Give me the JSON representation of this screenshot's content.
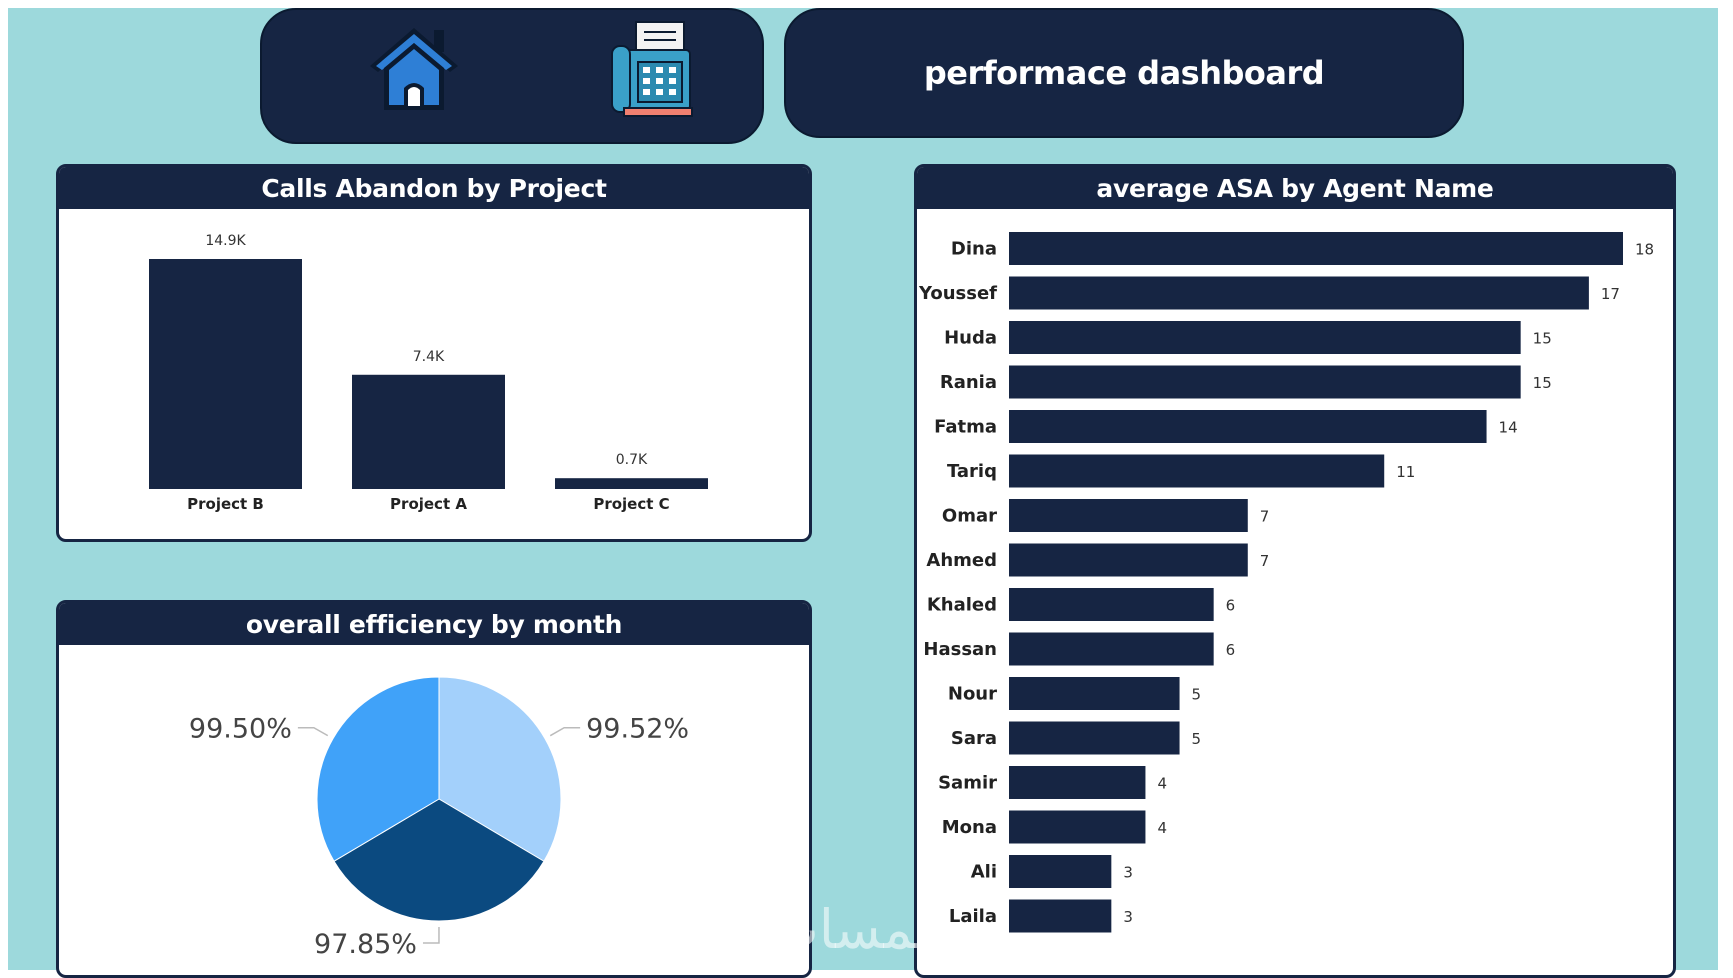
{
  "header": {
    "title": "performace dashboard",
    "nav_icons": [
      "home-icon",
      "phone-fax-icon"
    ]
  },
  "colors": {
    "canvas": "#9dd9dc",
    "navy": "#162543",
    "pie": [
      "#a3d0fb",
      "#0b4a80",
      "#40a2f9"
    ]
  },
  "watermark": "خمسات",
  "chart_data": [
    {
      "type": "bar",
      "title": "Calls Abandon by Project",
      "categories": [
        "Project B",
        "Project A",
        "Project C"
      ],
      "values": [
        14.9,
        7.4,
        0.7
      ],
      "value_labels": [
        "14.9K",
        "7.4K",
        "0.7K"
      ],
      "unit": "K",
      "ylim": [
        0,
        14.9
      ]
    },
    {
      "type": "pie",
      "title": "overall efficiency by month",
      "values": [
        99.52,
        97.85,
        99.5
      ],
      "labels": [
        "99.52%",
        "97.85%",
        "99.50%"
      ]
    },
    {
      "type": "bar",
      "orientation": "horizontal",
      "title": "average ASA by Agent Name",
      "categories": [
        "Dina",
        "Youssef",
        "Huda",
        "Rania",
        "Fatma",
        "Tariq",
        "Omar",
        "Ahmed",
        "Khaled",
        "Hassan",
        "Nour",
        "Sara",
        "Samir",
        "Mona",
        "Ali",
        "Laila"
      ],
      "values": [
        18,
        17,
        15,
        15,
        14,
        11,
        7,
        7,
        6,
        6,
        5,
        5,
        4,
        4,
        3,
        3
      ],
      "value_labels": [
        "18",
        "17",
        "15",
        "15",
        "14",
        "11",
        "7",
        "7",
        "6",
        "6",
        "5",
        "5",
        "4",
        "4",
        "3",
        "3"
      ],
      "xlim": [
        0,
        18
      ]
    }
  ]
}
